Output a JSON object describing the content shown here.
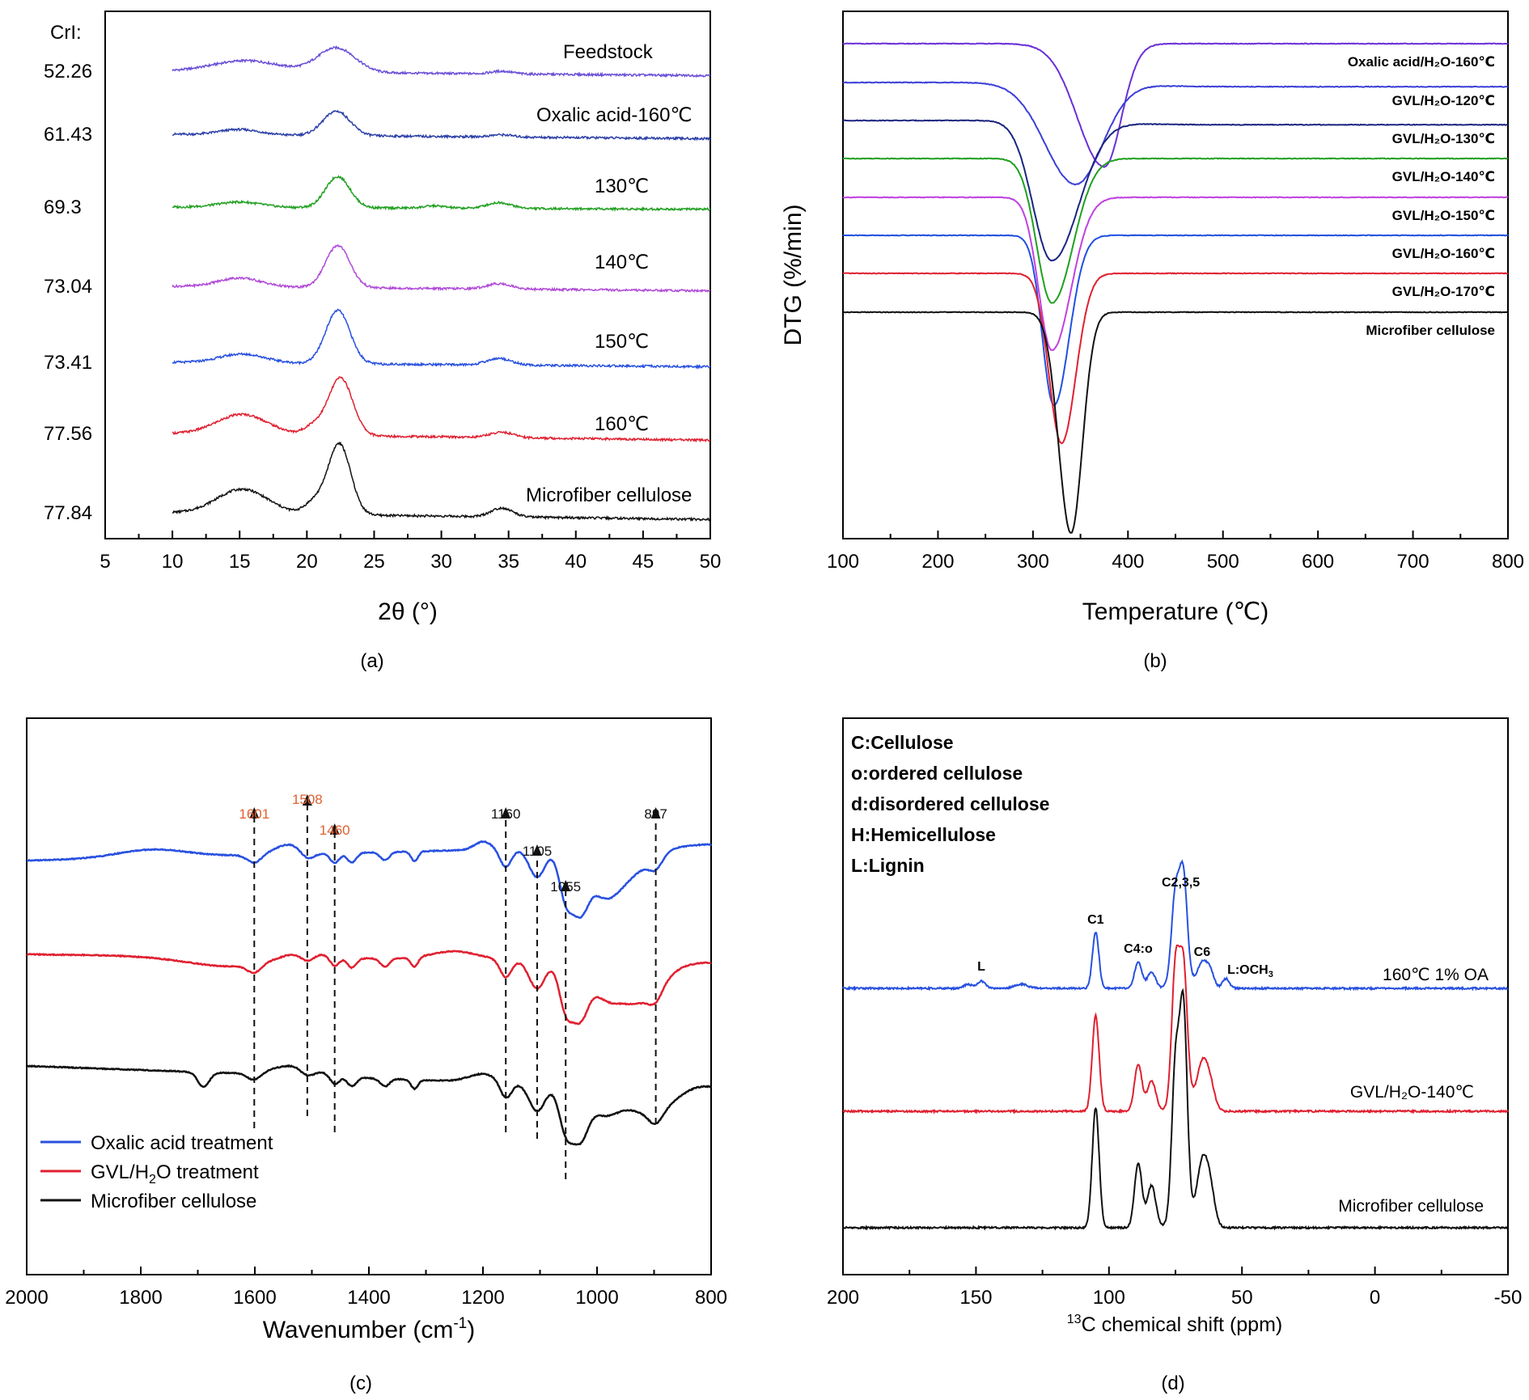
{
  "chart_data": [
    {
      "id": "a",
      "type": "line",
      "panel_label": "(a)",
      "xlabel": "2θ (°)",
      "ylabel": "",
      "xlim": [
        5,
        50
      ],
      "x_ticks": [
        5,
        10,
        15,
        20,
        25,
        30,
        35,
        40,
        45,
        50
      ],
      "crl_header": "CrI:",
      "grid": false,
      "series": [
        {
          "name": "Feedstock",
          "crl": "52.26",
          "color": "#6a4fd8",
          "x_range": [
            10,
            50
          ],
          "peaks": [
            {
              "x": 15.5,
              "h": 0.25,
              "w": 2.5
            },
            {
              "x": 22.2,
              "h": 0.55,
              "w": 1.4
            },
            {
              "x": 34.5,
              "h": 0.06,
              "w": 0.8
            }
          ],
          "base_start": 0.0,
          "base_end": -0.1
        },
        {
          "name": "Oxalic acid-160℃",
          "crl": "61.43",
          "color": "#2b3fa8",
          "x_range": [
            10,
            50
          ],
          "peaks": [
            {
              "x": 15,
              "h": 0.12,
              "w": 1.5
            },
            {
              "x": 22.2,
              "h": 0.55,
              "w": 1.0
            },
            {
              "x": 34.5,
              "h": 0.05,
              "w": 0.8
            }
          ],
          "base_start": 0.0,
          "base_end": -0.1
        },
        {
          "name": "130℃",
          "crl": "69.3",
          "color": "#22a022",
          "x_range": [
            10,
            50
          ],
          "peaks": [
            {
              "x": 15,
              "h": 0.12,
              "w": 1.6
            },
            {
              "x": 22.3,
              "h": 0.7,
              "w": 0.9
            },
            {
              "x": 34.3,
              "h": 0.13,
              "w": 0.9
            },
            {
              "x": 29.5,
              "h": 0.05,
              "w": 0.8
            }
          ],
          "base_start": 0.0,
          "base_end": -0.05
        },
        {
          "name": "140℃",
          "crl": "73.04",
          "color": "#b04ad8",
          "x_range": [
            10,
            50
          ],
          "peaks": [
            {
              "x": 15,
              "h": 0.2,
              "w": 1.6
            },
            {
              "x": 22.3,
              "h": 0.95,
              "w": 0.9
            },
            {
              "x": 34.3,
              "h": 0.12,
              "w": 0.9
            }
          ],
          "base_start": 0.0,
          "base_end": -0.1
        },
        {
          "name": "150℃",
          "crl": "73.41",
          "color": "#2850e0",
          "x_range": [
            10,
            50
          ],
          "peaks": [
            {
              "x": 15.2,
              "h": 0.2,
              "w": 1.7
            },
            {
              "x": 22.3,
              "h": 1.2,
              "w": 0.9
            },
            {
              "x": 34.3,
              "h": 0.15,
              "w": 0.9
            }
          ],
          "base_start": 0.0,
          "base_end": -0.1
        },
        {
          "name": "160℃",
          "crl": "77.56",
          "color": "#e02030",
          "x_range": [
            10,
            50
          ],
          "peaks": [
            {
              "x": 15.2,
              "h": 0.45,
              "w": 1.9
            },
            {
              "x": 22.5,
              "h": 1.3,
              "w": 0.9
            },
            {
              "x": 20.5,
              "h": 0.2,
              "w": 0.7
            },
            {
              "x": 34.5,
              "h": 0.12,
              "w": 0.9
            }
          ],
          "base_start": 0.0,
          "base_end": -0.15
        },
        {
          "name": "Microfiber cellulose",
          "crl": "77.84",
          "color": "#111111",
          "x_range": [
            10,
            50
          ],
          "peaks": [
            {
              "x": 15.2,
              "h": 0.55,
              "w": 1.9
            },
            {
              "x": 22.4,
              "h": 1.6,
              "w": 0.85
            },
            {
              "x": 20.5,
              "h": 0.25,
              "w": 0.7
            },
            {
              "x": 34.5,
              "h": 0.2,
              "w": 0.8
            }
          ],
          "base_start": 0.0,
          "base_end": -0.15
        }
      ]
    },
    {
      "id": "b",
      "type": "line",
      "panel_label": "(b)",
      "xlabel": "Temperature (℃)",
      "ylabel": "DTG (%/min)",
      "xlim": [
        100,
        800
      ],
      "x_ticks": [
        100,
        200,
        300,
        400,
        500,
        600,
        700,
        800
      ],
      "grid": false,
      "series": [
        {
          "name": "Oxalic acid/H₂O-160℃",
          "color": "#6a2fd8",
          "min_x": 375,
          "depth": 1.45,
          "w_left": 28,
          "w_right": 18,
          "plateau": 0.0
        },
        {
          "name": "GVL/H₂O-120℃",
          "color": "#3b3fd8",
          "min_x": 345,
          "depth": 1.2,
          "w_left": 32,
          "w_right": 28,
          "plateau": -0.05
        },
        {
          "name": "GVL/H₂O-130℃",
          "color": "#1b2580",
          "min_x": 320,
          "depth": 1.65,
          "w_left": 20,
          "w_right": 28,
          "plateau": -0.05
        },
        {
          "name": "GVL/H₂O-140℃",
          "color": "#20a020",
          "min_x": 320,
          "depth": 1.7,
          "w_left": 16,
          "w_right": 22,
          "plateau": 0.0
        },
        {
          "name": "GVL/H₂O-150℃",
          "color": "#c040e0",
          "min_x": 320,
          "depth": 1.8,
          "w_left": 14,
          "w_right": 20,
          "plateau": 0.0
        },
        {
          "name": "GVL/H₂O-160℃",
          "color": "#2050e0",
          "min_x": 322,
          "depth": 2.0,
          "w_left": 12,
          "w_right": 16,
          "plateau": 0.0
        },
        {
          "name": "GVL/H₂O-170℃",
          "color": "#e02030",
          "min_x": 330,
          "depth": 2.0,
          "w_left": 13,
          "w_right": 15,
          "plateau": 0.0
        },
        {
          "name": "Microfiber cellulose",
          "color": "#111111",
          "min_x": 340,
          "depth": 2.6,
          "w_left": 13,
          "w_right": 12,
          "plateau": 0.0
        }
      ]
    },
    {
      "id": "c",
      "type": "line",
      "panel_label": "(c)",
      "xlabel": "Wavenumber (cm⁻¹)",
      "xlabel_main": "Wavenumber (cm",
      "xlabel_sup": "-1",
      "xlabel_end": ")",
      "ylabel": "",
      "xlim": [
        2000,
        800
      ],
      "x_ticks": [
        2000,
        1800,
        1600,
        1400,
        1200,
        1000,
        800
      ],
      "grid": false,
      "legend_position": "bottom-left",
      "legend": [
        {
          "label": "Oxalic acid treatment",
          "color": "#2850e0"
        },
        {
          "label_main": "GVL/H",
          "label_sub": "2",
          "label_end": "O treatment",
          "label": "GVL/H₂O treatment",
          "color": "#e02030"
        },
        {
          "label": "Microfiber cellulose",
          "color": "#111111"
        }
      ],
      "annotations": [
        {
          "x": 1601,
          "label": "1601",
          "color": "#e06030"
        },
        {
          "x": 1508,
          "label": "1508",
          "color": "#e06030"
        },
        {
          "x": 1460,
          "label": "1460",
          "color": "#e06030"
        },
        {
          "x": 1160,
          "label": "1160",
          "color": "#111111"
        },
        {
          "x": 1105,
          "label": "1105",
          "color": "#111111"
        },
        {
          "x": 1055,
          "label": "1055",
          "color": "#111111"
        },
        {
          "x": 897,
          "label": "897",
          "color": "#111111"
        }
      ],
      "series": [
        {
          "name": "Oxalic acid treatment",
          "color": "#2850e0"
        },
        {
          "name": "GVL/H₂O treatment",
          "color": "#e02030"
        },
        {
          "name": "Microfiber cellulose",
          "color": "#111111"
        }
      ]
    },
    {
      "id": "d",
      "type": "line",
      "panel_label": "(d)",
      "xlabel": "13C chemical shift (ppm)",
      "xlabel_sup": "13",
      "xlabel_main": "C chemical shift (ppm)",
      "ylabel": "",
      "xlim": [
        200,
        -50
      ],
      "x_ticks": [
        200,
        150,
        100,
        50,
        0,
        -50
      ],
      "grid": false,
      "key": [
        "C:Cellulose",
        "o:ordered cellulose",
        "d:disordered cellulose",
        "H:Hemicellulose",
        "L:Lignin"
      ],
      "peak_labels": [
        {
          "x": 148,
          "label": "L"
        },
        {
          "x": 105,
          "label": "C1"
        },
        {
          "x": 89,
          "label": "C4:o"
        },
        {
          "x": 73,
          "label": "C2,3,5"
        },
        {
          "x": 65,
          "label": "C6"
        },
        {
          "x": 56,
          "label_main": "L:OCH",
          "label_sub": "3",
          "label": "L:OCH₃"
        }
      ],
      "series": [
        {
          "name": "160℃ 1% OA",
          "color": "#2850e0"
        },
        {
          "name": "GVL/H₂O-140℃",
          "color": "#e02030"
        },
        {
          "name": "Microfiber cellulose",
          "color": "#111111"
        }
      ]
    }
  ]
}
